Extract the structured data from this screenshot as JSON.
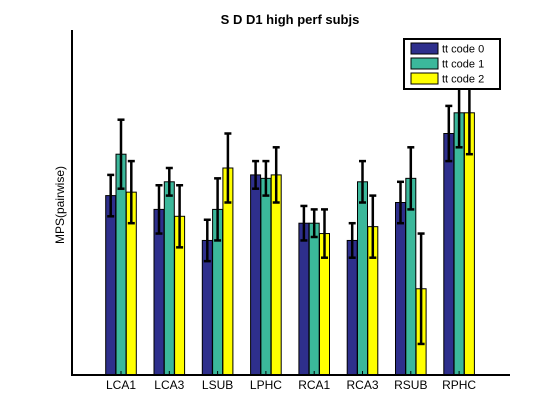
{
  "chart_data": {
    "type": "bar",
    "title": "S D D1 high perf subjs",
    "xlabel": "",
    "ylabel": "MPS(pairwise)",
    "ylim": [
      0,
      1
    ],
    "categories": [
      "LCA1",
      "LCA3",
      "LSUB",
      "LPHC",
      "RCA1",
      "RCA3",
      "RSUB",
      "RPHC"
    ],
    "series": [
      {
        "name": "tt code 0",
        "color": "#2e2f8c",
        "values": [
          0.52,
          0.48,
          0.39,
          0.58,
          0.44,
          0.39,
          0.5,
          0.7
        ],
        "errors": [
          0.06,
          0.07,
          0.06,
          0.04,
          0.05,
          0.05,
          0.06,
          0.08
        ]
      },
      {
        "name": "tt code 1",
        "color": "#3bb89b",
        "values": [
          0.64,
          0.56,
          0.48,
          0.57,
          0.44,
          0.56,
          0.57,
          0.76
        ],
        "errors": [
          0.1,
          0.04,
          0.09,
          0.05,
          0.04,
          0.06,
          0.09,
          0.1
        ]
      },
      {
        "name": "tt code 2",
        "color": "#ffff00",
        "values": [
          0.53,
          0.46,
          0.6,
          0.58,
          0.41,
          0.43,
          0.25,
          0.76
        ],
        "errors": [
          0.09,
          0.09,
          0.1,
          0.08,
          0.07,
          0.09,
          0.16,
          0.12
        ]
      }
    ],
    "legend_position": "top-right",
    "grid": false
  }
}
